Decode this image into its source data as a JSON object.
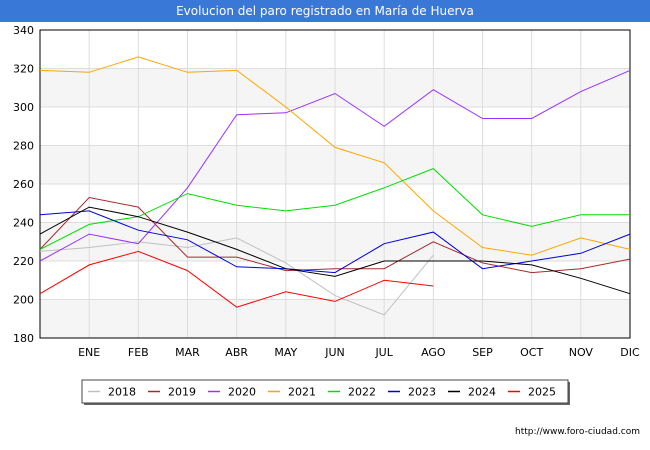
{
  "chart_data": {
    "type": "line",
    "title": "Evolucion del paro registrado en María de Huerva",
    "xlabel": "",
    "ylabel": "",
    "categories": [
      "",
      "ENE",
      "FEB",
      "MAR",
      "ABR",
      "MAY",
      "JUN",
      "JUL",
      "AGO",
      "SEP",
      "OCT",
      "NOV",
      "DIC"
    ],
    "ylim": [
      180,
      340
    ],
    "yticks": [
      180,
      200,
      220,
      240,
      260,
      280,
      300,
      320,
      340
    ],
    "grid": true,
    "legend_position": "bottom",
    "series": [
      {
        "name": "2018",
        "color": "#c0c0c0",
        "values": [
          225,
          227,
          230,
          227,
          232,
          219,
          202,
          192,
          223,
          null,
          null,
          null,
          null
        ]
      },
      {
        "name": "2019",
        "color": "#a52a2a",
        "values": [
          226,
          253,
          248,
          222,
          222,
          215,
          216,
          216,
          230,
          219,
          214,
          216,
          221
        ]
      },
      {
        "name": "2020",
        "color": "#9b30ff",
        "values": [
          220,
          234,
          229,
          258,
          296,
          297,
          307,
          290,
          309,
          294,
          294,
          308,
          319
        ]
      },
      {
        "name": "2021",
        "color": "#ffa500",
        "values": [
          319,
          318,
          326,
          318,
          319,
          300,
          279,
          271,
          246,
          227,
          223,
          232,
          226
        ]
      },
      {
        "name": "2022",
        "color": "#00e000",
        "values": [
          226,
          239,
          243,
          255,
          249,
          246,
          249,
          258,
          268,
          244,
          238,
          244,
          244
        ]
      },
      {
        "name": "2023",
        "color": "#0000dd",
        "values": [
          244,
          246,
          236,
          231,
          217,
          216,
          214,
          229,
          235,
          216,
          220,
          224,
          234
        ]
      },
      {
        "name": "2024",
        "color": "#000000",
        "values": [
          234,
          248,
          243,
          235,
          226,
          216,
          212,
          220,
          220,
          220,
          218,
          211,
          203
        ]
      },
      {
        "name": "2025",
        "color": "#ff0000",
        "values": [
          203,
          218,
          225,
          215,
          196,
          204,
          199,
          210,
          207,
          null,
          null,
          null,
          null
        ]
      }
    ]
  },
  "watermark": "http://www.foro-ciudad.com"
}
